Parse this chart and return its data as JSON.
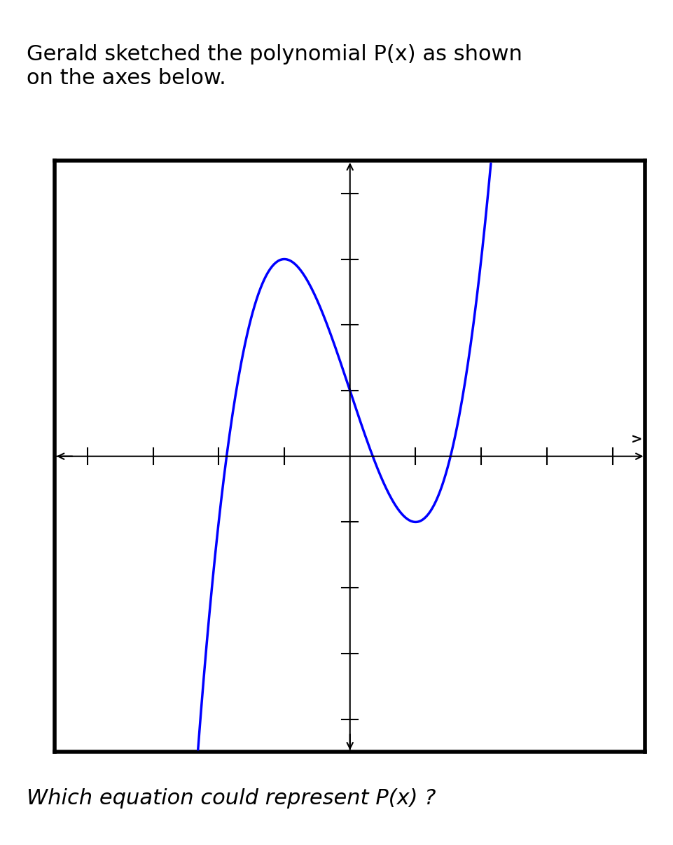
{
  "title_text": "Gerald sketched the polynomial P(x) as shown\non the axes below.",
  "question_text": "Which equation could represent P(x) ?",
  "background_color": "#ffffff",
  "curve_color": "#0000ff",
  "axis_color": "#000000",
  "box_color": "#000000",
  "xlim": [
    -4.5,
    4.5
  ],
  "ylim": [
    -4.5,
    4.5
  ],
  "tick_positions_x": [
    -4,
    -3,
    -2,
    -1,
    1,
    2,
    3,
    4
  ],
  "tick_positions_y": [
    -4,
    -3,
    -2,
    -1,
    1,
    2,
    3,
    4
  ],
  "curve_x_start": -3.5,
  "curve_x_end": 3.8,
  "polynomial_coeffs": [
    1,
    0,
    -3,
    1
  ],
  "title_fontsize": 22,
  "question_fontsize": 22
}
